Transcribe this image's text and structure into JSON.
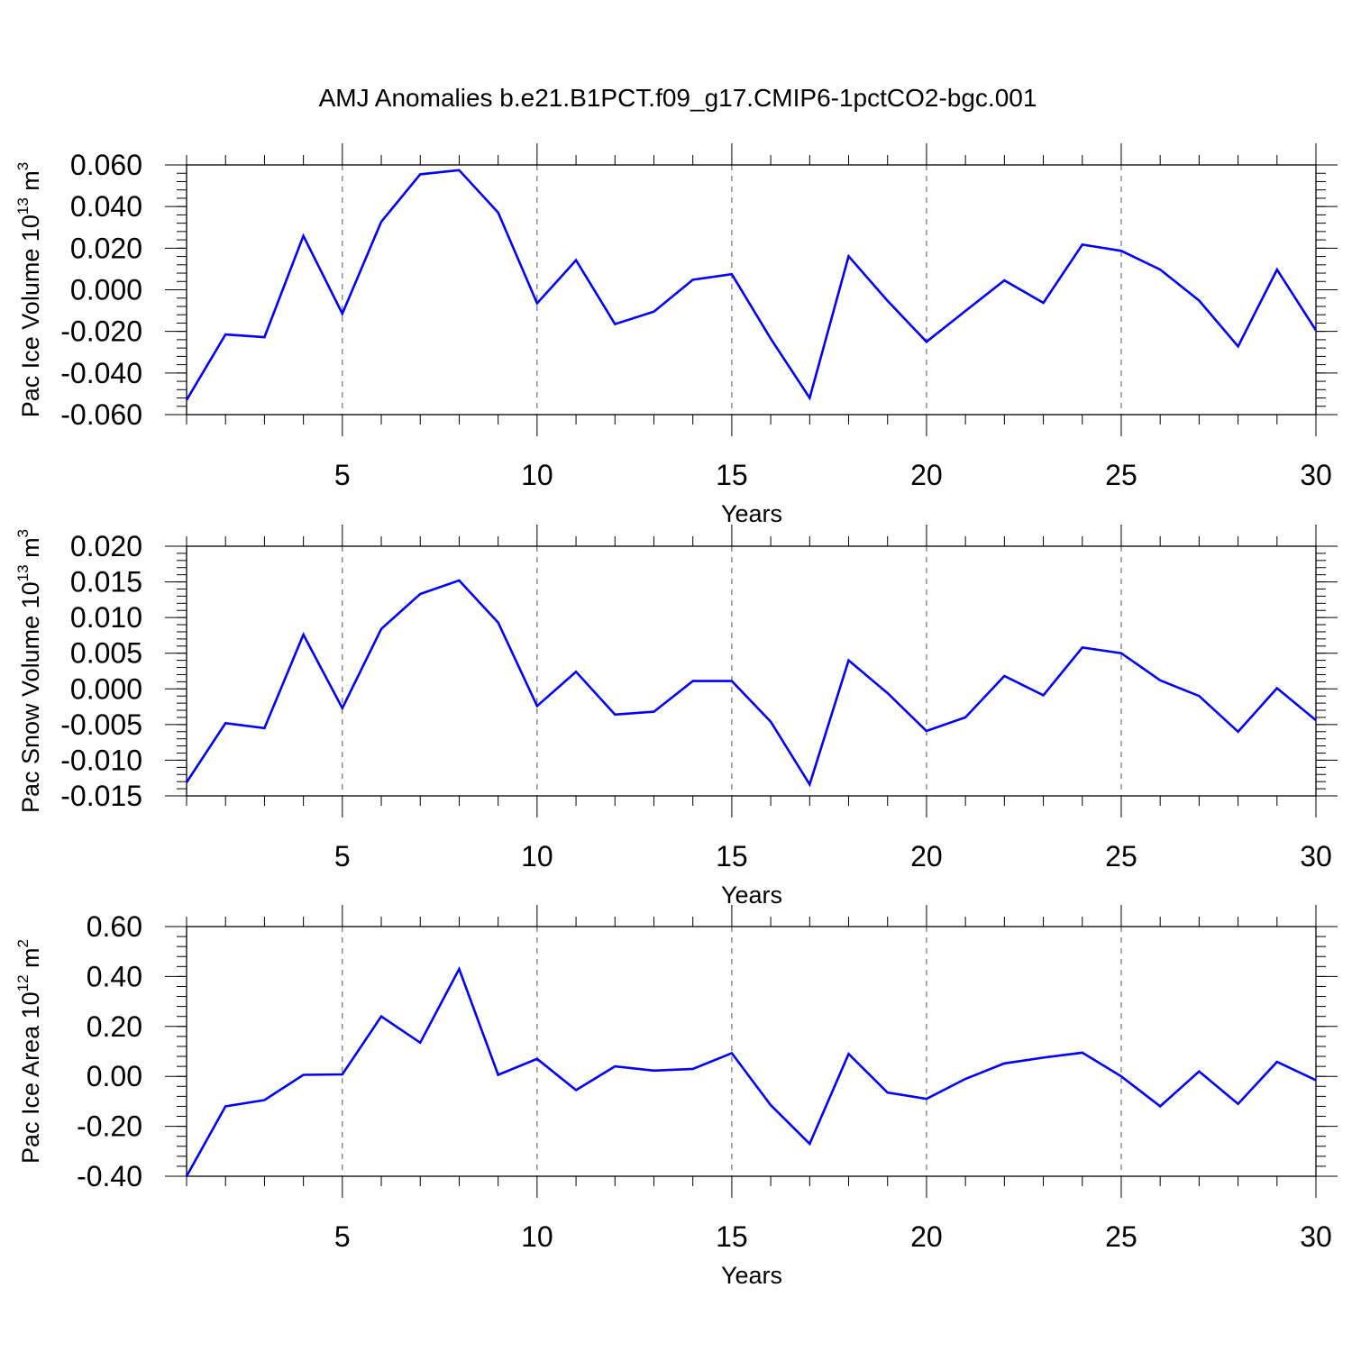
{
  "title": "AMJ Anomalies b.e21.B1PCT.f09_g17.CMIP6-1pctCO2-bgc.001",
  "line_color": "#0000ff",
  "chart_data": [
    {
      "type": "line",
      "xlabel": "Years",
      "ylabel": {
        "prefix": "Pac Ice Volume 10",
        "exponent": "13",
        "unit": " m",
        "unit_exponent": "3"
      },
      "x": [
        1,
        2,
        3,
        4,
        5,
        6,
        7,
        8,
        9,
        10,
        11,
        12,
        13,
        14,
        15,
        16,
        17,
        18,
        19,
        20,
        21,
        22,
        23,
        24,
        25,
        26,
        27,
        28,
        29,
        30
      ],
      "values": [
        -0.053,
        -0.0215,
        -0.0228,
        0.0259,
        -0.0115,
        0.0327,
        0.0555,
        0.0575,
        0.0371,
        -0.0065,
        0.0142,
        -0.0165,
        -0.0105,
        0.0048,
        0.0075,
        -0.0235,
        -0.052,
        0.0161,
        -0.0053,
        -0.025,
        -0.0102,
        0.0045,
        -0.0063,
        0.0217,
        0.0187,
        0.0097,
        -0.0052,
        -0.0272,
        0.0097,
        -0.0195
      ],
      "xlim": [
        1,
        30
      ],
      "ylim": [
        -0.06,
        0.06
      ],
      "xticks": [
        5,
        10,
        15,
        20,
        25,
        30
      ],
      "xtick_labels": [
        "5",
        "10",
        "15",
        "20",
        "25",
        "30"
      ],
      "yticks": [
        -0.06,
        -0.04,
        -0.02,
        0,
        0.02,
        0.04,
        0.06
      ],
      "ytick_labels": [
        "-0.060",
        "-0.040",
        "-0.020",
        "0.000",
        "0.020",
        "0.040",
        "0.060"
      ],
      "minor_step": 0.004
    },
    {
      "type": "line",
      "xlabel": "Years",
      "ylabel": {
        "prefix": "Pac Snow Volume 10",
        "exponent": "13",
        "unit": " m",
        "unit_exponent": "3"
      },
      "x": [
        1,
        2,
        3,
        4,
        5,
        6,
        7,
        8,
        9,
        10,
        11,
        12,
        13,
        14,
        15,
        16,
        17,
        18,
        19,
        20,
        21,
        22,
        23,
        24,
        25,
        26,
        27,
        28,
        29,
        30
      ],
      "values": [
        -0.0131,
        -0.0048,
        -0.0055,
        0.0076,
        -0.0027,
        0.0084,
        0.0133,
        0.0152,
        0.0093,
        -0.0024,
        0.0024,
        -0.0036,
        -0.0032,
        0.0011,
        0.0011,
        -0.0046,
        -0.0134,
        0.004,
        -0.0006,
        -0.0059,
        -0.004,
        0.0018,
        -0.0009,
        0.0058,
        0.005,
        0.0012,
        -0.001,
        -0.006,
        0.0001,
        -0.0044
      ],
      "xlim": [
        1,
        30
      ],
      "ylim": [
        -0.015,
        0.02
      ],
      "xticks": [
        5,
        10,
        15,
        20,
        25,
        30
      ],
      "xtick_labels": [
        "5",
        "10",
        "15",
        "20",
        "25",
        "30"
      ],
      "yticks": [
        -0.015,
        -0.01,
        -0.005,
        0,
        0.005,
        0.01,
        0.015,
        0.02
      ],
      "ytick_labels": [
        "-0.015",
        "-0.010",
        "-0.005",
        "0.000",
        "0.005",
        "0.010",
        "0.015",
        "0.020"
      ],
      "minor_step": 0.001
    },
    {
      "type": "line",
      "xlabel": "Years",
      "ylabel": {
        "prefix": "Pac Ice Area 10",
        "exponent": "12",
        "unit": " m",
        "unit_exponent": "2"
      },
      "x": [
        1,
        2,
        3,
        4,
        5,
        6,
        7,
        8,
        9,
        10,
        11,
        12,
        13,
        14,
        15,
        16,
        17,
        18,
        19,
        20,
        21,
        22,
        23,
        24,
        25,
        26,
        27,
        28,
        29,
        30
      ],
      "values": [
        -0.4,
        -0.12,
        -0.095,
        0.006,
        0.008,
        0.24,
        0.135,
        0.43,
        0.006,
        0.07,
        -0.055,
        0.04,
        0.023,
        0.03,
        0.093,
        -0.115,
        -0.27,
        0.09,
        -0.065,
        -0.09,
        -0.01,
        0.052,
        0.075,
        0.095,
        0.0,
        -0.12,
        0.02,
        -0.11,
        0.058,
        -0.015
      ],
      "xlim": [
        1,
        30
      ],
      "ylim": [
        -0.4,
        0.6
      ],
      "xticks": [
        5,
        10,
        15,
        20,
        25,
        30
      ],
      "xtick_labels": [
        "5",
        "10",
        "15",
        "20",
        "25",
        "30"
      ],
      "yticks": [
        -0.4,
        -0.2,
        0,
        0.2,
        0.4,
        0.6
      ],
      "ytick_labels": [
        "-0.40",
        "-0.20",
        "0.00",
        "0.20",
        "0.40",
        "0.60"
      ],
      "minor_step": 0.04
    }
  ]
}
